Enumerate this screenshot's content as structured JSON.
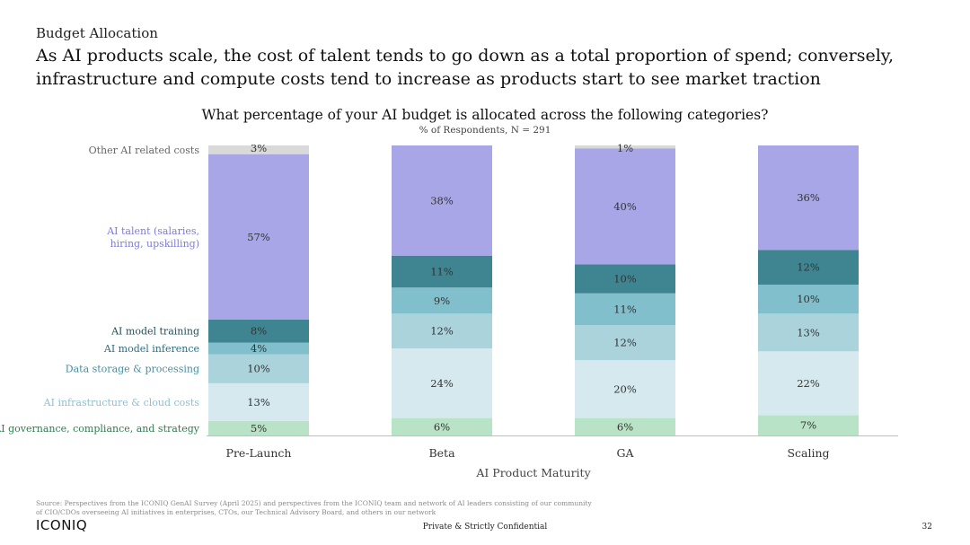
{
  "header": {
    "section": "Budget Allocation",
    "headline": "As AI products scale, the cost of talent tends to go down as a total proportion of spend; conversely, infrastructure and compute costs tend to increase as products start to see market traction"
  },
  "chart_data": {
    "type": "bar",
    "stacked": true,
    "title": "What percentage of your AI budget is allocated across the following categories?",
    "subtitle": "% of Respondents, N = 291",
    "xlabel": "AI Product Maturity",
    "ylabel": "",
    "ylim": [
      0,
      100
    ],
    "grid": false,
    "legend": "left",
    "categories": [
      "Pre-Launch",
      "Beta",
      "GA",
      "Scaling"
    ],
    "series": [
      {
        "name": "AI governance, compliance, and strategy",
        "values": [
          5,
          6,
          6,
          7
        ],
        "labels": [
          "5%",
          "6%",
          "6%",
          "7%"
        ],
        "color": "#b9e3c6",
        "label_color": "#2e7d4f"
      },
      {
        "name": "AI infrastructure & cloud costs",
        "values": [
          13,
          24,
          20,
          22
        ],
        "labels": [
          "13%",
          "24%",
          "20%",
          "22%"
        ],
        "color": "#d6e9ef",
        "label_color": "#8ebfd1"
      },
      {
        "name": "Data storage & processing",
        "values": [
          10,
          12,
          12,
          13
        ],
        "labels": [
          "10%",
          "12%",
          "12%",
          "13%"
        ],
        "color": "#aad3dc",
        "label_color": "#3f8fa3"
      },
      {
        "name": "AI model inference",
        "values": [
          4,
          9,
          11,
          10
        ],
        "labels": [
          "4%",
          "9%",
          "11%",
          "10%"
        ],
        "color": "#80bfcb",
        "label_color": "#2a6f80"
      },
      {
        "name": "AI model training",
        "values": [
          8,
          11,
          10,
          12
        ],
        "labels": [
          "8%",
          "11%",
          "10%",
          "12%"
        ],
        "color": "#3e8591",
        "label_color": "#1f4d57"
      },
      {
        "name": "AI talent (salaries, hiring, upskilling)",
        "values": [
          57,
          38,
          40,
          36
        ],
        "labels": [
          "57%",
          "38%",
          "40%",
          "36%"
        ],
        "color": "#a8a6e6",
        "label_color": "#7f7bd8"
      },
      {
        "name": "Other AI related costs",
        "values": [
          3,
          0,
          1,
          0
        ],
        "labels": [
          "3%",
          "",
          "1%",
          ""
        ],
        "color": "#d9d9d9",
        "label_color": "#666666"
      }
    ]
  },
  "footer": {
    "source": "Source: Perspectives from the ICONIQ GenAI Survey (April 2025) and perspectives from the ICONIQ team and network of AI leaders consisting of our community of CIO/CDOs overseeing AI initiatives in enterprises, CTOs, our Technical Advisory Board, and others in our network",
    "logo": "ICONIQ",
    "confidential": "Private & Strictly Confidential",
    "page": "32"
  }
}
